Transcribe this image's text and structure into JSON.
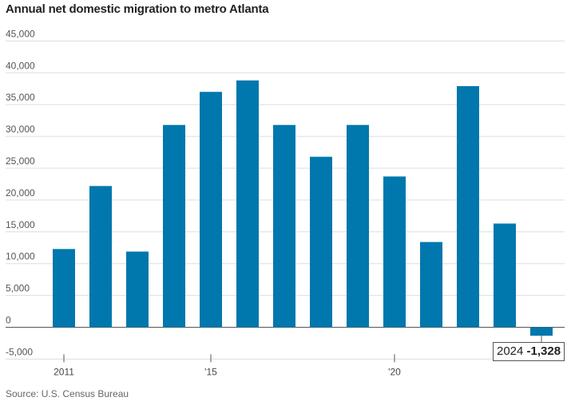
{
  "title": "Annual net domestic migration to metro Atlanta",
  "source": "Source: U.S. Census Bureau",
  "chart_data": {
    "type": "bar",
    "title": "Annual net domestic migration to metro Atlanta",
    "xlabel": "",
    "ylabel": "",
    "categories": [
      "2011",
      "2012",
      "2013",
      "2014",
      "2015",
      "2016",
      "2017",
      "2018",
      "2019",
      "2020",
      "2021",
      "2022",
      "2023",
      "2024"
    ],
    "x_tick_labels": [
      {
        "category": "2011",
        "label": "2011"
      },
      {
        "category": "2015",
        "label": "'15"
      },
      {
        "category": "2020",
        "label": "'20"
      }
    ],
    "series": [
      {
        "values": [
          12300,
          22200,
          11900,
          31800,
          37000,
          38800,
          31800,
          26800,
          31800,
          23700,
          13400,
          37900,
          16300,
          -1328
        ]
      }
    ],
    "ylim": [
      -5000,
      45000
    ],
    "yticks": [
      45000,
      40000,
      35000,
      30000,
      25000,
      20000,
      15000,
      10000,
      5000,
      0,
      -5000
    ],
    "ytick_labels": [
      "45,000",
      "40,000",
      "35,000",
      "30,000",
      "25,000",
      "20,000",
      "15,000",
      "10,000",
      "5,000",
      "0",
      "-5,000"
    ],
    "grid": true,
    "bar_color": "#0077ad",
    "annotation": {
      "category": "2024",
      "year": "2024",
      "value": "-1,328"
    }
  }
}
